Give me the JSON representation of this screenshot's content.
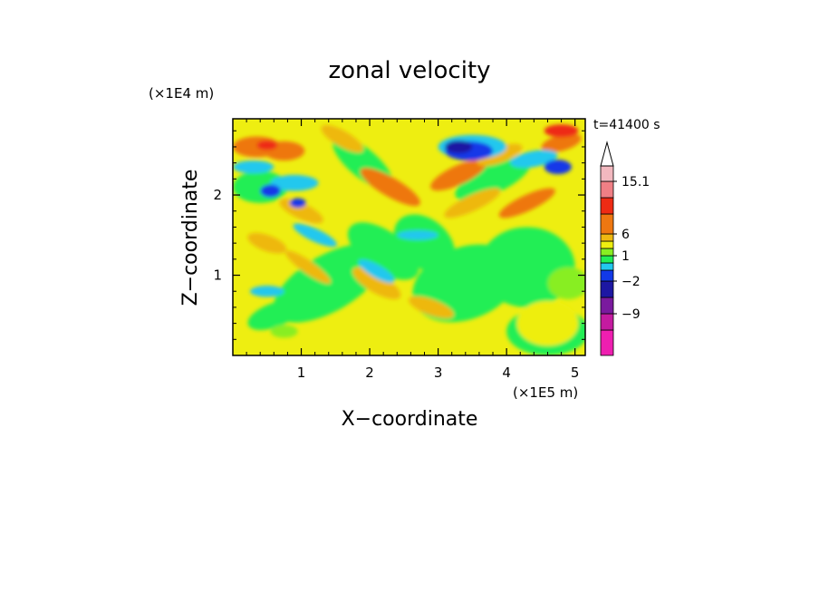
{
  "chart_data": {
    "type": "heatmap",
    "title": "zonal velocity",
    "xlabel": "X−coordinate",
    "ylabel": "Z−coordinate",
    "x_scale_label": "(×1E5 m)",
    "y_scale_label": "(×1E4 m)",
    "time_label": "t=41400 s",
    "xlim": [
      0,
      5.15
    ],
    "ylim": [
      0,
      2.95
    ],
    "x_ticks": [
      "1",
      "2",
      "3",
      "4",
      "5"
    ],
    "x_tick_values": [
      1,
      2,
      3,
      4,
      5
    ],
    "y_ticks": [
      "1",
      "2"
    ],
    "y_tick_values": [
      1,
      2
    ],
    "colorbar": {
      "tick_labels": [
        "15.1",
        "6",
        "1",
        "−2",
        "−9"
      ],
      "tick_values": [
        15.1,
        6,
        1,
        -2,
        -9
      ],
      "levels": [
        -15,
        -12,
        -9,
        -6,
        -2,
        -1,
        0,
        1,
        2,
        3,
        6,
        9,
        12,
        15.1
      ],
      "colors": [
        "#ee1fb0",
        "#c41ba0",
        "#7a1a9e",
        "#1d17a3",
        "#1239e8",
        "#22c8ee",
        "#22ee55",
        "#88ee22",
        "#eeee11",
        "#eeb811",
        "#ee7711",
        "#ee2b14",
        "#f07f85",
        "#f2b8bf"
      ],
      "extend_max_color": "#ffffff"
    }
  }
}
